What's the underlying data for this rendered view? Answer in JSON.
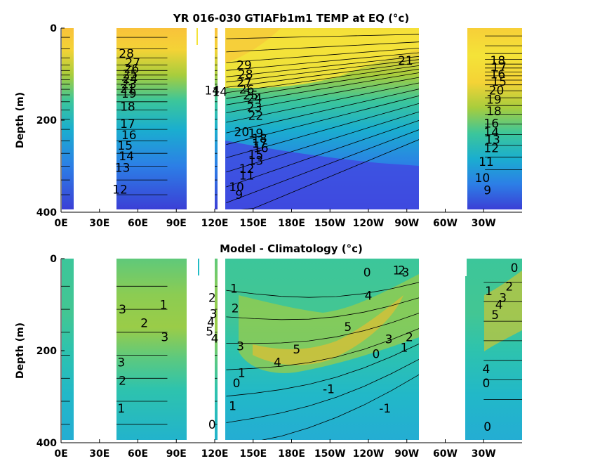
{
  "chart_data": [
    {
      "type": "heatmap",
      "subtype": "filled-contour depth-longitude section",
      "title": "YR 016-030 GTIAFb1m1 TEMP at EQ (°c)",
      "ylabel": "Depth (m)",
      "xlabel": "",
      "x_ticks": [
        "0E",
        "30E",
        "60E",
        "90E",
        "120E",
        "150E",
        "180E",
        "150W",
        "120W",
        "90W",
        "60W",
        "30W"
      ],
      "x_tick_lon": [
        0,
        30,
        60,
        90,
        120,
        150,
        180,
        210,
        240,
        270,
        300,
        330
      ],
      "xlim": [
        0,
        360
      ],
      "y_ticks": [
        "0",
        "200",
        "400"
      ],
      "ylim": [
        0,
        400
      ],
      "y_reversed": true,
      "colormap": [
        "#3b3fd6",
        "#2c7fe6",
        "#1aaecf",
        "#3cc69a",
        "#a7cd3d",
        "#f4d336",
        "#f9b83a"
      ],
      "ocean_segments_lon": [
        [
          0,
          7
        ],
        [
          41,
          83
        ],
        [
          120,
          122
        ],
        [
          129,
          301
        ],
        [
          331,
          360
        ]
      ],
      "contour_labels": [
        {
          "text": "29",
          "lon": 143,
          "depth": 80
        },
        {
          "text": "28",
          "lon": 144,
          "depth": 100
        },
        {
          "text": "27",
          "lon": 143,
          "depth": 118
        },
        {
          "text": "26",
          "lon": 145,
          "depth": 133
        },
        {
          "text": "25",
          "lon": 148,
          "depth": 146
        },
        {
          "text": "24",
          "lon": 151,
          "depth": 153
        },
        {
          "text": "23",
          "lon": 151,
          "depth": 172
        },
        {
          "text": "22",
          "lon": 152,
          "depth": 190
        },
        {
          "text": "21",
          "lon": 269,
          "depth": 70
        },
        {
          "text": "20",
          "lon": 141,
          "depth": 225
        },
        {
          "text": "19",
          "lon": 152,
          "depth": 228
        },
        {
          "text": "18",
          "lon": 155,
          "depth": 240
        },
        {
          "text": "17",
          "lon": 155,
          "depth": 250
        },
        {
          "text": "16",
          "lon": 156,
          "depth": 260
        },
        {
          "text": "15",
          "lon": 152,
          "depth": 275
        },
        {
          "text": "13",
          "lon": 152,
          "depth": 288
        },
        {
          "text": "12",
          "lon": 145,
          "depth": 305
        },
        {
          "text": "11",
          "lon": 145,
          "depth": 320
        },
        {
          "text": "10",
          "lon": 137,
          "depth": 345
        },
        {
          "text": "9",
          "lon": 139,
          "depth": 362
        },
        {
          "text": "14",
          "lon": 118,
          "depth": 135
        },
        {
          "text": "14",
          "lon": 124,
          "depth": 138
        },
        {
          "text": "28",
          "lon": 51,
          "depth": 55
        },
        {
          "text": "27",
          "lon": 56,
          "depth": 75
        },
        {
          "text": "26",
          "lon": 55,
          "depth": 88
        },
        {
          "text": "25",
          "lon": 54,
          "depth": 100
        },
        {
          "text": "24",
          "lon": 54,
          "depth": 110
        },
        {
          "text": "23",
          "lon": 53,
          "depth": 121
        },
        {
          "text": "21",
          "lon": 52,
          "depth": 131
        },
        {
          "text": "19",
          "lon": 53,
          "depth": 142
        },
        {
          "text": "18",
          "lon": 52,
          "depth": 170
        },
        {
          "text": "17",
          "lon": 52,
          "depth": 208
        },
        {
          "text": "16",
          "lon": 53,
          "depth": 232
        },
        {
          "text": "15",
          "lon": 50,
          "depth": 255
        },
        {
          "text": "14",
          "lon": 51,
          "depth": 278
        },
        {
          "text": "13",
          "lon": 48,
          "depth": 303
        },
        {
          "text": "12",
          "lon": 46,
          "depth": 350
        },
        {
          "text": "18",
          "lon": 341,
          "depth": 70
        },
        {
          "text": "17",
          "lon": 342,
          "depth": 85
        },
        {
          "text": "16",
          "lon": 341,
          "depth": 100
        },
        {
          "text": "15",
          "lon": 342,
          "depth": 116
        },
        {
          "text": "20",
          "lon": 340,
          "depth": 135
        },
        {
          "text": "19",
          "lon": 338,
          "depth": 155
        },
        {
          "text": "18",
          "lon": 338,
          "depth": 180
        },
        {
          "text": "16",
          "lon": 336,
          "depth": 207
        },
        {
          "text": "14",
          "lon": 336,
          "depth": 226
        },
        {
          "text": "13",
          "lon": 337,
          "depth": 242
        },
        {
          "text": "12",
          "lon": 336,
          "depth": 260
        },
        {
          "text": "11",
          "lon": 332,
          "depth": 290
        },
        {
          "text": "10",
          "lon": 329,
          "depth": 325
        },
        {
          "text": "9",
          "lon": 333,
          "depth": 352
        }
      ]
    },
    {
      "type": "heatmap",
      "subtype": "filled-contour depth-longitude section",
      "title": "Model - Climatology (°c)",
      "ylabel": "Depth (m)",
      "xlabel": "",
      "x_ticks": [
        "0E",
        "30E",
        "60E",
        "90E",
        "120E",
        "150E",
        "180E",
        "150W",
        "120W",
        "90W",
        "60W",
        "30W"
      ],
      "x_tick_lon": [
        0,
        30,
        60,
        90,
        120,
        150,
        180,
        210,
        240,
        270,
        300,
        330
      ],
      "xlim": [
        0,
        360
      ],
      "y_ticks": [
        "0",
        "200",
        "400"
      ],
      "ylim": [
        0,
        400
      ],
      "y_reversed": true,
      "colormap": [
        "#28a8d8",
        "#22bcc5",
        "#3cc69a",
        "#7ccb5c",
        "#b6cb3a",
        "#e0c030"
      ],
      "ocean_segments_lon": [
        [
          0,
          7
        ],
        [
          41,
          83
        ],
        [
          120,
          122
        ],
        [
          129,
          301
        ],
        [
          330,
          360
        ]
      ],
      "contour_labels": [
        {
          "text": "0",
          "lon": 239,
          "depth": 30
        },
        {
          "text": "1",
          "lon": 262,
          "depth": 25
        },
        {
          "text": "2",
          "lon": 266,
          "depth": 25
        },
        {
          "text": "3",
          "lon": 269,
          "depth": 30
        },
        {
          "text": "1",
          "lon": 135,
          "depth": 65
        },
        {
          "text": "2",
          "lon": 136,
          "depth": 108
        },
        {
          "text": "4",
          "lon": 240,
          "depth": 80
        },
        {
          "text": "5",
          "lon": 224,
          "depth": 148
        },
        {
          "text": "5",
          "lon": 184,
          "depth": 197
        },
        {
          "text": "3",
          "lon": 256,
          "depth": 175
        },
        {
          "text": "2",
          "lon": 272,
          "depth": 170
        },
        {
          "text": "1",
          "lon": 268,
          "depth": 193
        },
        {
          "text": "0",
          "lon": 246,
          "depth": 207
        },
        {
          "text": "3",
          "lon": 140,
          "depth": 190
        },
        {
          "text": "4",
          "lon": 169,
          "depth": 225
        },
        {
          "text": "-1",
          "lon": 209,
          "depth": 283
        },
        {
          "text": "-1",
          "lon": 253,
          "depth": 325
        },
        {
          "text": "1",
          "lon": 141,
          "depth": 248
        },
        {
          "text": "0",
          "lon": 137,
          "depth": 270
        },
        {
          "text": "1",
          "lon": 134,
          "depth": 320
        },
        {
          "text": "0",
          "lon": 118,
          "depth": 360
        },
        {
          "text": "2",
          "lon": 118,
          "depth": 85
        },
        {
          "text": "3",
          "lon": 119,
          "depth": 120
        },
        {
          "text": "4",
          "lon": 117,
          "depth": 138
        },
        {
          "text": "5",
          "lon": 116,
          "depth": 158
        },
        {
          "text": "4",
          "lon": 120,
          "depth": 173
        },
        {
          "text": "3",
          "lon": 48,
          "depth": 110
        },
        {
          "text": "2",
          "lon": 65,
          "depth": 140
        },
        {
          "text": "1",
          "lon": 80,
          "depth": 100
        },
        {
          "text": "3",
          "lon": 81,
          "depth": 170
        },
        {
          "text": "3",
          "lon": 47,
          "depth": 225
        },
        {
          "text": "2",
          "lon": 48,
          "depth": 265
        },
        {
          "text": "1",
          "lon": 47,
          "depth": 325
        },
        {
          "text": "0",
          "lon": 354,
          "depth": 20
        },
        {
          "text": "2",
          "lon": 350,
          "depth": 60
        },
        {
          "text": "3",
          "lon": 345,
          "depth": 85
        },
        {
          "text": "4",
          "lon": 342,
          "depth": 100
        },
        {
          "text": "1",
          "lon": 334,
          "depth": 70
        },
        {
          "text": "5",
          "lon": 339,
          "depth": 122
        },
        {
          "text": "4",
          "lon": 332,
          "depth": 240
        },
        {
          "text": "0",
          "lon": 332,
          "depth": 270
        },
        {
          "text": "0",
          "lon": 333,
          "depth": 365
        }
      ]
    }
  ]
}
